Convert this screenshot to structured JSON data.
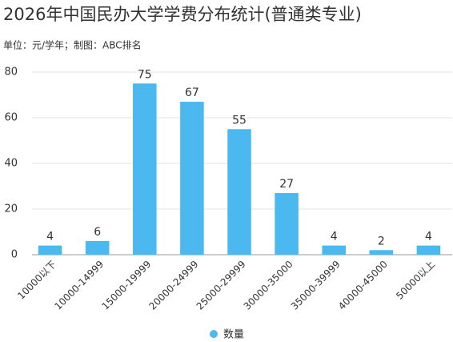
{
  "chart_data": {
    "type": "bar",
    "title": "2026年中国民办大学学费分布统计(普通类专业)",
    "subtitle": "单位：元/学年；制图：ABC排名",
    "categories": [
      "10000以下",
      "10000-14999",
      "15000-19999",
      "20000-24999",
      "25000-29999",
      "30000-35000",
      "35000-39999",
      "40000-45000",
      "50000以上"
    ],
    "series": [
      {
        "name": "数量",
        "color": "#4bb8ef",
        "values": [
          4,
          6,
          75,
          67,
          55,
          27,
          4,
          2,
          4
        ]
      }
    ],
    "ylim": [
      0,
      80
    ],
    "yticks": [
      0,
      20,
      40,
      60,
      80
    ],
    "grid": true,
    "legend": "bottom"
  }
}
